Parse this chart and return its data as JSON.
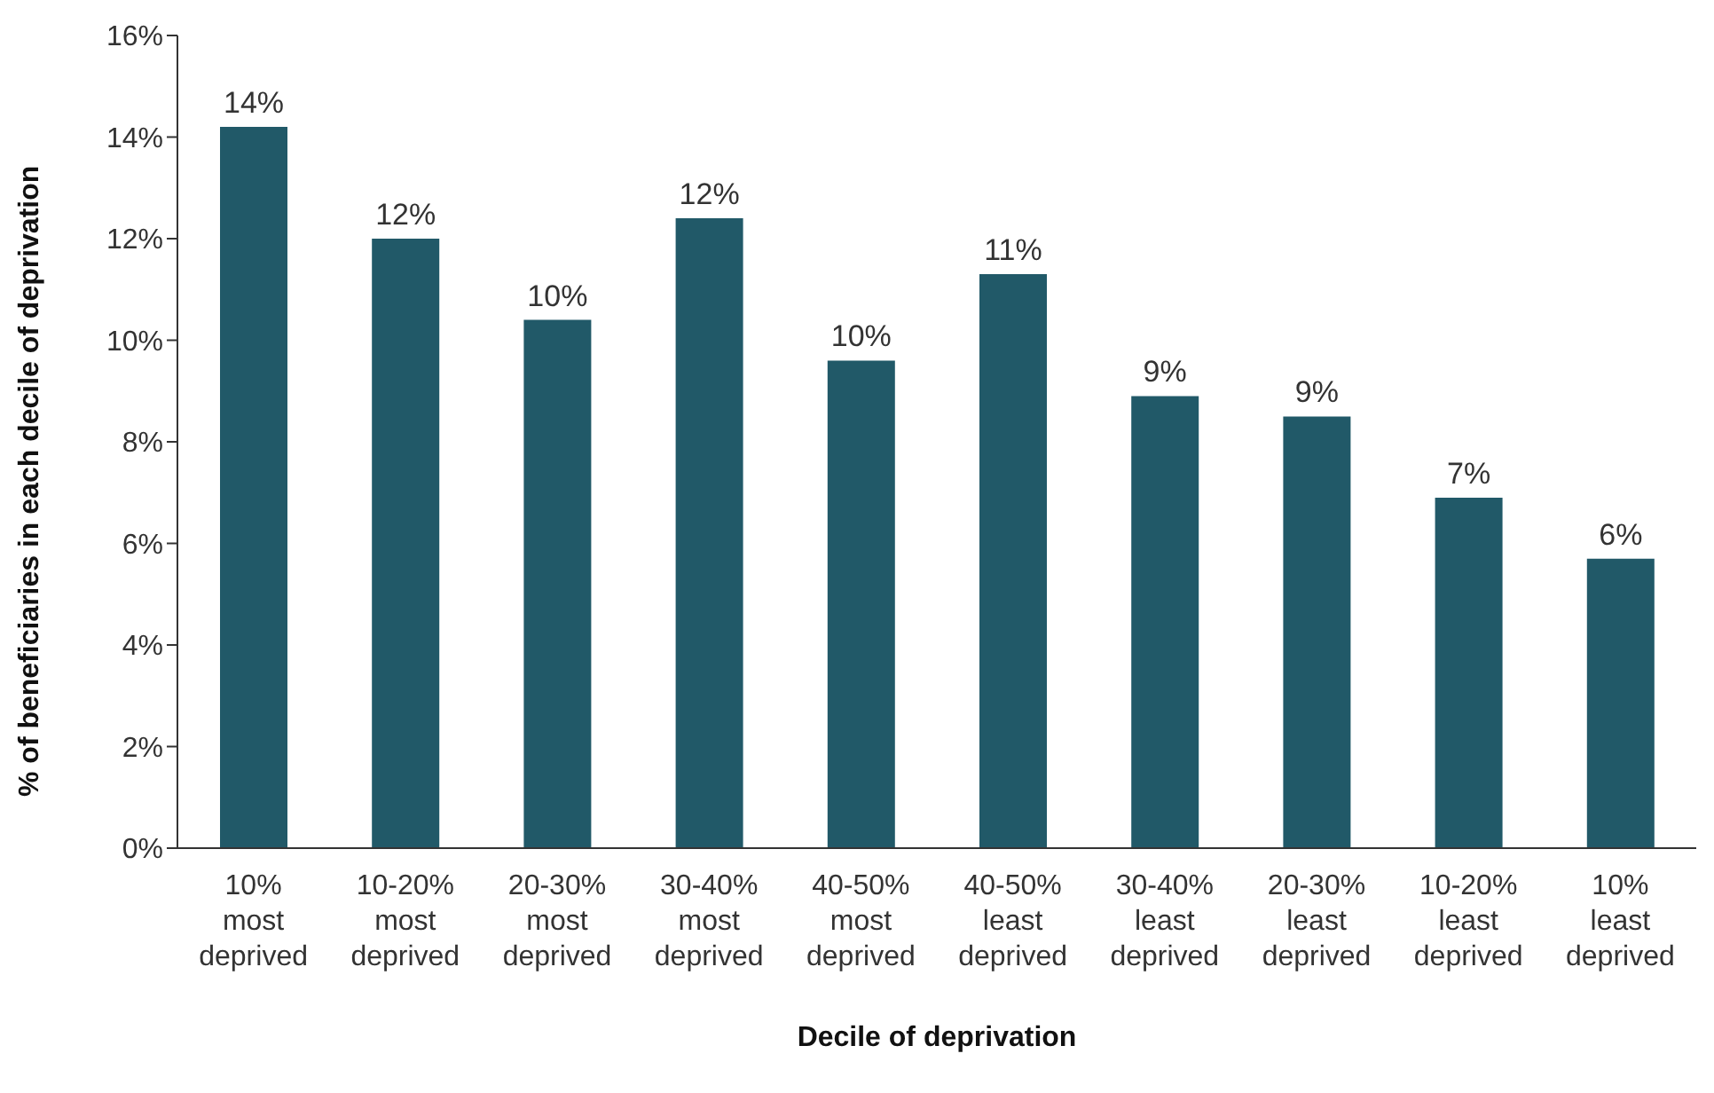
{
  "chart_data": {
    "type": "bar",
    "xlabel": "Decile of deprivation",
    "ylabel": "% of beneficiaries in each decile of deprivation",
    "categories": [
      "10% most deprived",
      "10-20% most deprived",
      "20-30% most deprived",
      "30-40% most deprived",
      "40-50% most deprived",
      "40-50% least deprived",
      "30-40% least deprived",
      "20-30% least deprived",
      "10-20% least deprived",
      "10% least deprived"
    ],
    "values": [
      14.2,
      12.0,
      10.4,
      12.4,
      9.6,
      11.3,
      8.9,
      8.5,
      6.9,
      5.7
    ],
    "value_labels": [
      "14%",
      "12%",
      "10%",
      "12%",
      "10%",
      "11%",
      "9%",
      "9%",
      "7%",
      "6%"
    ],
    "color": "#215968",
    "ylim": [
      0,
      16
    ],
    "yticks": [
      {
        "value": 0,
        "label": "0%"
      },
      {
        "value": 2,
        "label": "2%"
      },
      {
        "value": 4,
        "label": "4%"
      },
      {
        "value": 6,
        "label": "6%"
      },
      {
        "value": 8,
        "label": "8%"
      },
      {
        "value": 10,
        "label": "10%"
      },
      {
        "value": 12,
        "label": "12%"
      },
      {
        "value": 14,
        "label": "14%"
      },
      {
        "value": 16,
        "label": "16%"
      }
    ],
    "grid": false,
    "legend": false
  }
}
